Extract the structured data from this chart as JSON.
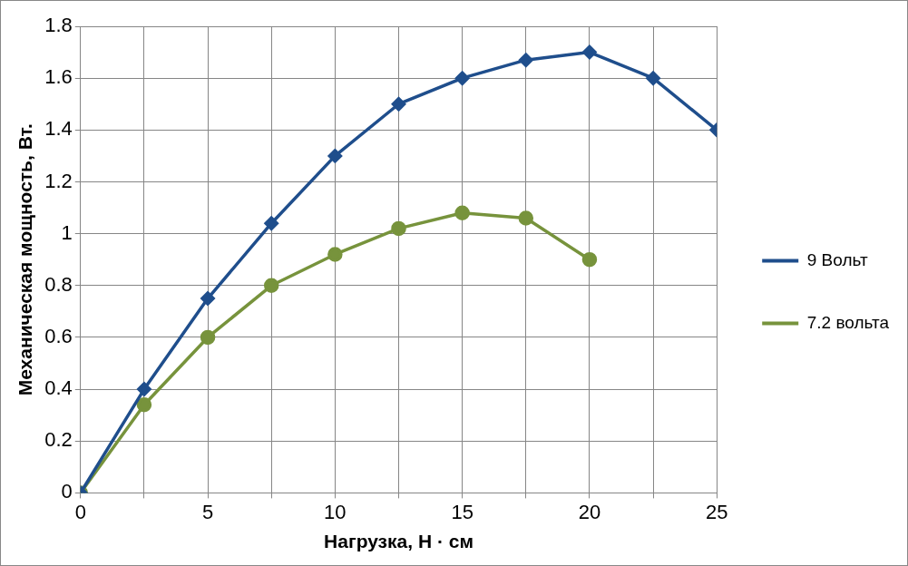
{
  "chart_data": {
    "type": "line",
    "xlabel": "Нагрузка, Н · см",
    "ylabel": "Механическая мощность, Вт.",
    "xlim": [
      0,
      25
    ],
    "xticks": [
      0,
      {
        "value": 2.5,
        "label": null
      },
      5,
      {
        "value": 7.5,
        "label": null
      },
      10,
      {
        "value": 12.5,
        "label": null
      },
      15,
      {
        "value": 17.5,
        "label": null
      },
      20,
      {
        "value": 22.5,
        "label": null
      },
      25
    ],
    "ylim": [
      0,
      1.8
    ],
    "yticks": [
      0,
      0.2,
      0.4,
      0.6,
      0.8,
      1,
      1.2,
      1.4,
      1.6,
      1.8
    ],
    "grid": true,
    "legend": "right",
    "series": [
      {
        "name": "9 Вольт",
        "color": "#1f4e8c",
        "marker": "diamond",
        "x": [
          0,
          2.5,
          5,
          7.5,
          10,
          12.5,
          15,
          17.5,
          20,
          22.5,
          25
        ],
        "values": [
          0,
          0.4,
          0.75,
          1.04,
          1.3,
          1.5,
          1.6,
          1.67,
          1.7,
          1.6,
          1.4
        ]
      },
      {
        "name": "7.2 вольта",
        "color": "#77933c",
        "marker": "circle",
        "x": [
          0,
          2.5,
          5,
          7.5,
          10,
          12.5,
          15,
          17.5,
          20
        ],
        "values": [
          0,
          0.34,
          0.6,
          0.8,
          0.92,
          1.02,
          1.08,
          1.06,
          0.9
        ]
      }
    ]
  }
}
